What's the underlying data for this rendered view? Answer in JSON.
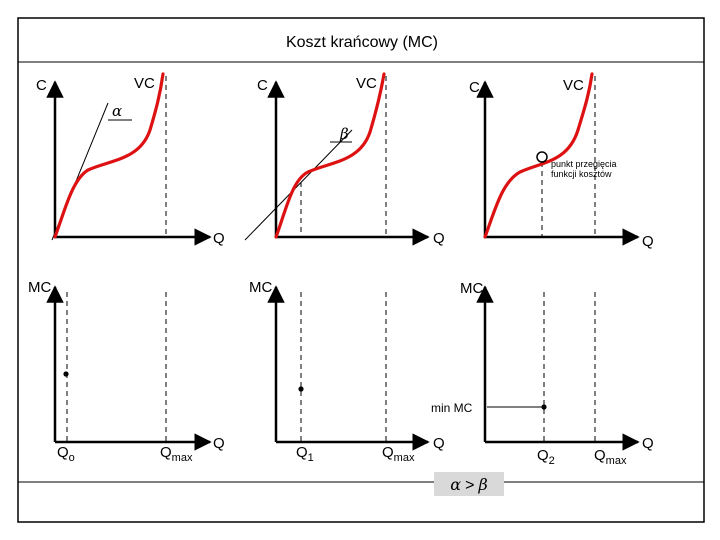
{
  "title": "Koszt krańcowy (MC)",
  "top_panels": [
    {
      "y_label": "C",
      "x_label": "Q",
      "curve_label": "VC",
      "angle_label": "α"
    },
    {
      "y_label": "C",
      "x_label": "Q",
      "curve_label": "VC",
      "angle_label": "β"
    },
    {
      "y_label": "C",
      "x_label": "Q",
      "curve_label": "VC",
      "annotation_line1": "punkt przegięcia",
      "annotation_line2": "funkcji kosztów"
    }
  ],
  "bottom_panels": [
    {
      "y_label": "MC",
      "x_label": "Q",
      "q_label": "Q",
      "q_sub": "o",
      "qmax_label": "Q",
      "qmax_sub": "max"
    },
    {
      "y_label": "MC",
      "x_label": "Q",
      "q_label": "Q",
      "q_sub": "1",
      "qmax_label": "Q",
      "qmax_sub": "max"
    },
    {
      "y_label": "MC",
      "x_label": "Q",
      "q_label": "Q",
      "q_sub": "2",
      "qmax_label": "Q",
      "qmax_sub": "max",
      "min_label": "min MC"
    }
  ],
  "comparison": {
    "left": "α",
    "op": ">",
    "right": "β"
  },
  "colors": {
    "curve": "#dd1111",
    "axes": "#000000",
    "background": "#ffffff",
    "comparison_box": "#d9d9d9"
  }
}
